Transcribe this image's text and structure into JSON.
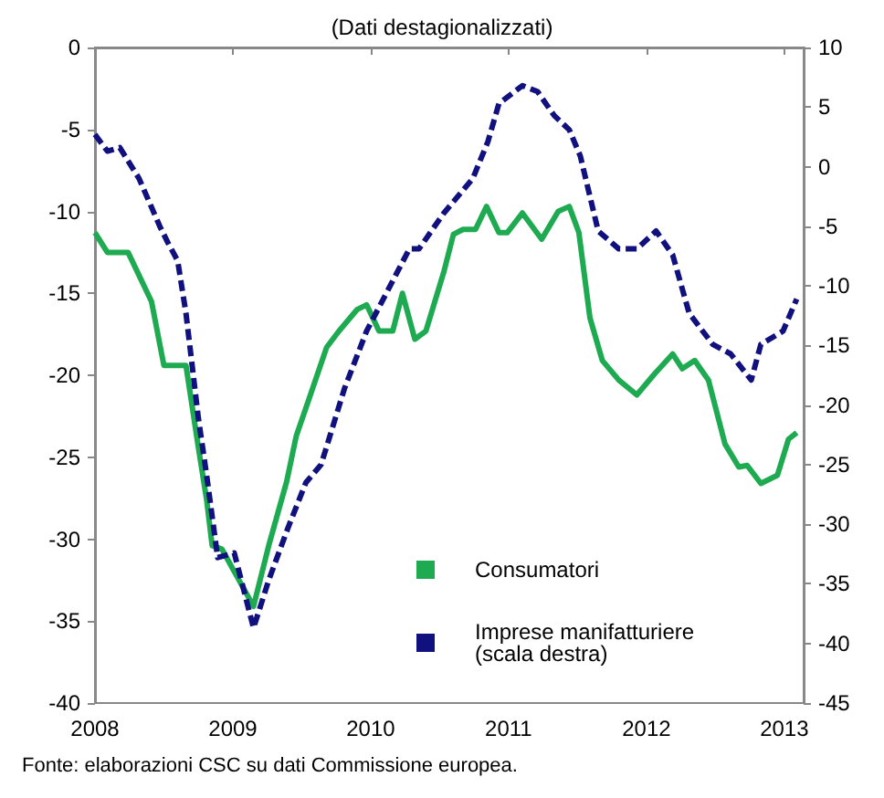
{
  "chart_data": {
    "type": "line",
    "title": "(Dati destagionalizzati)",
    "annotations": [
      "Fonte: elaborazioni CSC su dati Commissione europea."
    ],
    "xlim": [
      2008,
      2013.14
    ],
    "xticks": [
      2008,
      2009,
      2010,
      2011,
      2012,
      2013
    ],
    "ylim": [
      -40,
      0
    ],
    "yticks": [
      -40,
      -35,
      -30,
      -25,
      -20,
      -15,
      -10,
      -5,
      0
    ],
    "y2lim": [
      -45,
      10
    ],
    "y2ticks": [
      -45,
      -40,
      -35,
      -30,
      -25,
      -20,
      -15,
      -10,
      -5,
      0,
      5,
      10
    ],
    "grid": false,
    "legend": "bottom",
    "marker": "none",
    "series": [
      {
        "name": "Consumatori",
        "color": "#1eaa50",
        "line_style": "solid",
        "x": [
          2008.0,
          2008.09,
          2008.24,
          2008.41,
          2008.5,
          2008.66,
          2008.75,
          2008.81,
          2008.85,
          2008.92,
          2009.15,
          2009.26,
          2009.39,
          2009.46,
          2009.55,
          2009.68,
          2009.77,
          2009.9,
          2009.97,
          2010.06,
          2010.16,
          2010.23,
          2010.32,
          2010.4,
          2010.53,
          2010.6,
          2010.67,
          2010.76,
          2010.84,
          2010.93,
          2010.99,
          2011.1,
          2011.24,
          2011.36,
          2011.44,
          2011.51,
          2011.59,
          2011.68,
          2011.8,
          2011.93,
          2012.06,
          2012.19,
          2012.26,
          2012.35,
          2012.45,
          2012.57,
          2012.67,
          2012.73,
          2012.83,
          2012.95,
          2013.03,
          2013.09
        ],
        "values": [
          -11.3,
          -12.5,
          -12.5,
          -15.5,
          -19.4,
          -19.4,
          -24.4,
          -27.6,
          -30.4,
          -30.6,
          -34.1,
          -30.4,
          -26.5,
          -23.7,
          -21.5,
          -18.3,
          -17.3,
          -16,
          -15.7,
          -17.3,
          -17.3,
          -15,
          -17.8,
          -17.3,
          -13.7,
          -11.4,
          -11.1,
          -11.1,
          -9.7,
          -11.3,
          -11.3,
          -10.1,
          -11.7,
          -10,
          -9.7,
          -11.3,
          -16.5,
          -19.1,
          -20.3,
          -21.2,
          -19.9,
          -18.7,
          -19.6,
          -19.1,
          -20.3,
          -24.2,
          -25.6,
          -25.5,
          -26.6,
          -26.1,
          -23.9,
          -23.5
        ]
      },
      {
        "name": "Imprese manifatturiere\n(scala destra)",
        "color": "#10107e",
        "line_style": "dashed",
        "axis": "y2",
        "x": [
          2008.0,
          2008.09,
          2008.18,
          2008.32,
          2008.47,
          2008.53,
          2008.6,
          2008.66,
          2008.75,
          2008.81,
          2008.89,
          2009.01,
          2009.15,
          2009.26,
          2009.4,
          2009.53,
          2009.64,
          2009.81,
          2009.97,
          2010.15,
          2010.28,
          2010.35,
          2010.53,
          2010.74,
          2010.85,
          2010.93,
          2011.1,
          2011.21,
          2011.33,
          2011.44,
          2011.52,
          2011.65,
          2011.8,
          2011.93,
          2012.07,
          2012.19,
          2012.31,
          2012.48,
          2012.61,
          2012.76,
          2012.83,
          2012.99,
          2013.09
        ],
        "values": [
          2.7,
          1.3,
          1.6,
          -1,
          -5,
          -6.4,
          -7.9,
          -12.3,
          -21.1,
          -25.9,
          -32.8,
          -32.4,
          -38.7,
          -34.7,
          -30.3,
          -26.5,
          -25,
          -18.6,
          -13.8,
          -9.8,
          -6.9,
          -6.9,
          -3.9,
          -1,
          2.1,
          5.3,
          6.8,
          6.3,
          4.3,
          3.1,
          0.9,
          -5.4,
          -6.9,
          -6.9,
          -5.4,
          -7.4,
          -12.3,
          -14.9,
          -15.7,
          -17.9,
          -14.9,
          -13.8,
          -11.1
        ]
      }
    ]
  }
}
